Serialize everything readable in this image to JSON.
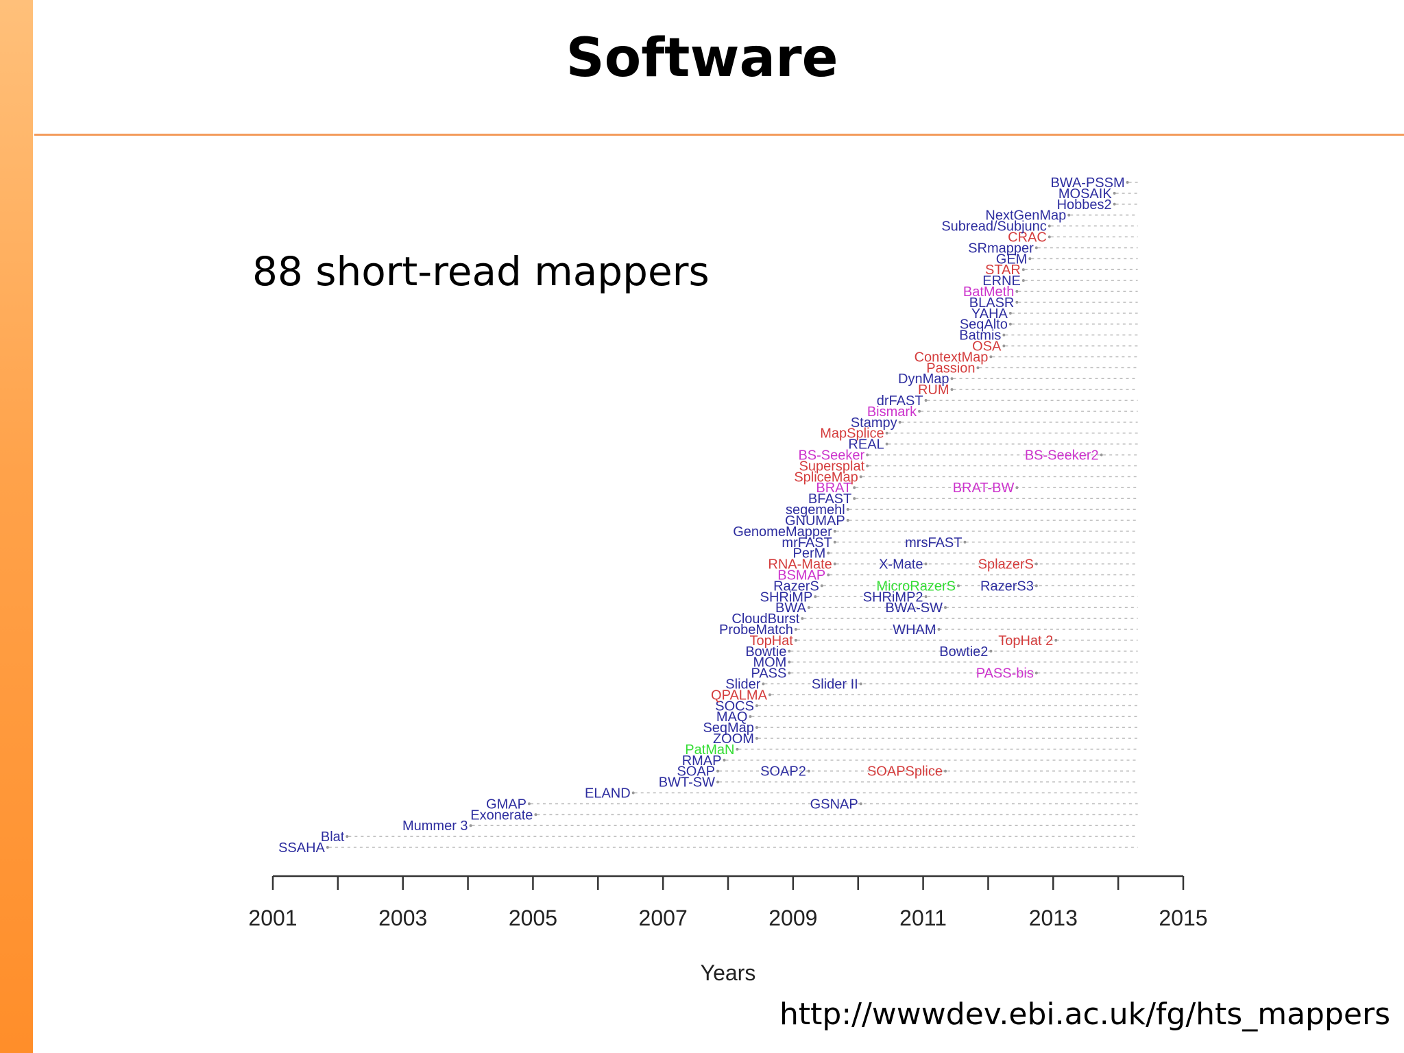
{
  "slide": {
    "title": "Software",
    "subtitle": "88 short-read mappers",
    "source": "http://wwwdev.ebi.ac.uk/fg/hts_mappers"
  },
  "colors": {
    "accent": "#ff9933",
    "dna": "#2d2d9f",
    "rna": "#d43c3c",
    "bisulfite": "#cc33cc",
    "other": "#33dd33",
    "axis": "#333333",
    "line": "#bbbbbb"
  },
  "chart_data": {
    "type": "timeline",
    "xlabel": "Years",
    "xlim": [
      2001,
      2015
    ],
    "xticks": [
      2001,
      2002,
      2003,
      2004,
      2005,
      2006,
      2007,
      2008,
      2009,
      2010,
      2011,
      2012,
      2013,
      2014,
      2015
    ],
    "xtick_labels": [
      "2001",
      "",
      "2003",
      "",
      "2005",
      "",
      "2007",
      "",
      "2009",
      "",
      "2011",
      "",
      "2013",
      "",
      "2015"
    ],
    "end_year": 2014.3,
    "tools": [
      {
        "name": "SSAHA",
        "year": 2001.8,
        "category": "dna"
      },
      {
        "name": "Blat",
        "year": 2002.1,
        "category": "dna"
      },
      {
        "name": "Mummer 3",
        "year": 2004.0,
        "category": "dna"
      },
      {
        "name": "Exonerate",
        "year": 2005.0,
        "category": "dna"
      },
      {
        "name": "GMAP",
        "year": 2004.9,
        "category": "dna"
      },
      {
        "name": "GSNAP",
        "year": 2010.0,
        "category": "dna"
      },
      {
        "name": "ELAND",
        "year": 2006.5,
        "category": "dna"
      },
      {
        "name": "BWT-SW",
        "year": 2007.8,
        "category": "dna"
      },
      {
        "name": "SOAP",
        "year": 2007.8,
        "category": "dna"
      },
      {
        "name": "SOAP2",
        "year": 2009.2,
        "category": "dna"
      },
      {
        "name": "SOAPSplice",
        "year": 2011.3,
        "category": "rna"
      },
      {
        "name": "RMAP",
        "year": 2007.9,
        "category": "dna"
      },
      {
        "name": "PatMaN",
        "year": 2008.1,
        "category": "other"
      },
      {
        "name": "ZOOM",
        "year": 2008.4,
        "category": "dna"
      },
      {
        "name": "SeqMap",
        "year": 2008.4,
        "category": "dna"
      },
      {
        "name": "MAQ",
        "year": 2008.3,
        "category": "dna"
      },
      {
        "name": "SOCS",
        "year": 2008.4,
        "category": "dna"
      },
      {
        "name": "QPALMA",
        "year": 2008.6,
        "category": "rna"
      },
      {
        "name": "Slider",
        "year": 2008.5,
        "category": "dna"
      },
      {
        "name": "Slider II",
        "year": 2010.0,
        "category": "dna"
      },
      {
        "name": "PASS",
        "year": 2008.9,
        "category": "dna"
      },
      {
        "name": "PASS-bis",
        "year": 2012.7,
        "category": "bisulfite"
      },
      {
        "name": "MOM",
        "year": 2008.9,
        "category": "dna"
      },
      {
        "name": "Bowtie",
        "year": 2008.9,
        "category": "dna"
      },
      {
        "name": "Bowtie2",
        "year": 2012.0,
        "category": "dna"
      },
      {
        "name": "TopHat",
        "year": 2009.0,
        "category": "rna"
      },
      {
        "name": "TopHat 2",
        "year": 2013.0,
        "category": "rna"
      },
      {
        "name": "ProbeMatch",
        "year": 2009.0,
        "category": "dna"
      },
      {
        "name": "CloudBurst",
        "year": 2009.1,
        "category": "dna"
      },
      {
        "name": "WHAM",
        "year": 2011.2,
        "category": "dna"
      },
      {
        "name": "BWA",
        "year": 2009.2,
        "category": "dna"
      },
      {
        "name": "BWA-SW",
        "year": 2011.3,
        "category": "dna"
      },
      {
        "name": "SHRiMP",
        "year": 2009.3,
        "category": "dna"
      },
      {
        "name": "SHRiMP2",
        "year": 2011.0,
        "category": "dna"
      },
      {
        "name": "RazerS",
        "year": 2009.4,
        "category": "dna"
      },
      {
        "name": "MicroRazerS",
        "year": 2011.5,
        "category": "other"
      },
      {
        "name": "RazerS3",
        "year": 2012.7,
        "category": "dna"
      },
      {
        "name": "BSMAP",
        "year": 2009.5,
        "category": "bisulfite"
      },
      {
        "name": "RNA-Mate",
        "year": 2009.6,
        "category": "rna"
      },
      {
        "name": "X-Mate",
        "year": 2011.0,
        "category": "dna"
      },
      {
        "name": "SplazerS",
        "year": 2012.7,
        "category": "rna"
      },
      {
        "name": "PerM",
        "year": 2009.5,
        "category": "dna"
      },
      {
        "name": "mrFAST",
        "year": 2009.6,
        "category": "dna"
      },
      {
        "name": "mrsFAST",
        "year": 2011.6,
        "category": "dna"
      },
      {
        "name": "GenomeMapper",
        "year": 2009.6,
        "category": "dna"
      },
      {
        "name": "GNUMAP",
        "year": 2009.8,
        "category": "dna"
      },
      {
        "name": "segemehl",
        "year": 2009.8,
        "category": "dna"
      },
      {
        "name": "BFAST",
        "year": 2009.9,
        "category": "dna"
      },
      {
        "name": "BRAT",
        "year": 2009.9,
        "category": "bisulfite"
      },
      {
        "name": "BRAT-BW",
        "year": 2012.4,
        "category": "bisulfite"
      },
      {
        "name": "SpliceMap",
        "year": 2010.0,
        "category": "rna"
      },
      {
        "name": "Supersplat",
        "year": 2010.1,
        "category": "rna"
      },
      {
        "name": "BS-Seeker",
        "year": 2010.1,
        "category": "bisulfite"
      },
      {
        "name": "BS-Seeker2",
        "year": 2013.7,
        "category": "bisulfite"
      },
      {
        "name": "REAL",
        "year": 2010.4,
        "category": "dna"
      },
      {
        "name": "MapSplice",
        "year": 2010.4,
        "category": "rna"
      },
      {
        "name": "Stampy",
        "year": 2010.6,
        "category": "dna"
      },
      {
        "name": "Bismark",
        "year": 2010.9,
        "category": "bisulfite"
      },
      {
        "name": "drFAST",
        "year": 2011.0,
        "category": "dna"
      },
      {
        "name": "RUM",
        "year": 2011.4,
        "category": "rna"
      },
      {
        "name": "DynMap",
        "year": 2011.4,
        "category": "dna"
      },
      {
        "name": "Passion",
        "year": 2011.8,
        "category": "rna"
      },
      {
        "name": "ContextMap",
        "year": 2012.0,
        "category": "rna"
      },
      {
        "name": "OSA",
        "year": 2012.2,
        "category": "rna"
      },
      {
        "name": "Batmis",
        "year": 2012.2,
        "category": "dna"
      },
      {
        "name": "SeqAlto",
        "year": 2012.3,
        "category": "dna"
      },
      {
        "name": "YAHA",
        "year": 2012.3,
        "category": "dna"
      },
      {
        "name": "BLASR",
        "year": 2012.4,
        "category": "dna"
      },
      {
        "name": "BatMeth",
        "year": 2012.4,
        "category": "bisulfite"
      },
      {
        "name": "ERNE",
        "year": 2012.5,
        "category": "dna"
      },
      {
        "name": "STAR",
        "year": 2012.5,
        "category": "rna"
      },
      {
        "name": "GEM",
        "year": 2012.6,
        "category": "dna"
      },
      {
        "name": "SRmapper",
        "year": 2012.7,
        "category": "dna"
      },
      {
        "name": "CRAC",
        "year": 2012.9,
        "category": "rna"
      },
      {
        "name": "Subread/Subjunc",
        "year": 2012.9,
        "category": "dna"
      },
      {
        "name": "NextGenMap",
        "year": 2013.2,
        "category": "dna"
      },
      {
        "name": "Hobbes2",
        "year": 2013.9,
        "category": "dna"
      },
      {
        "name": "MOSAIK",
        "year": 2013.9,
        "category": "dna"
      },
      {
        "name": "BWA-PSSM",
        "year": 2014.1,
        "category": "dna"
      }
    ],
    "rows": [
      [
        "SSAHA"
      ],
      [
        "Blat"
      ],
      [
        "Mummer 3"
      ],
      [
        "Exonerate"
      ],
      [
        "GMAP",
        "GSNAP"
      ],
      [
        "ELAND"
      ],
      [
        "BWT-SW"
      ],
      [
        "SOAP",
        "SOAP2",
        "SOAPSplice"
      ],
      [
        "RMAP"
      ],
      [
        "PatMaN"
      ],
      [
        "ZOOM"
      ],
      [
        "SeqMap"
      ],
      [
        "MAQ"
      ],
      [
        "SOCS"
      ],
      [
        "QPALMA"
      ],
      [
        "Slider",
        "Slider II"
      ],
      [
        "PASS",
        "PASS-bis"
      ],
      [
        "MOM"
      ],
      [
        "Bowtie",
        "Bowtie2"
      ],
      [
        "TopHat",
        "TopHat 2"
      ],
      [
        "ProbeMatch",
        "WHAM"
      ],
      [
        "CloudBurst"
      ],
      [
        "BWA",
        "BWA-SW"
      ],
      [
        "SHRiMP",
        "SHRiMP2"
      ],
      [
        "RazerS",
        "MicroRazerS",
        "RazerS3"
      ],
      [
        "BSMAP"
      ],
      [
        "RNA-Mate",
        "X-Mate",
        "SplazerS"
      ],
      [
        "PerM"
      ],
      [
        "mrFAST",
        "mrsFAST"
      ],
      [
        "GenomeMapper"
      ],
      [
        "GNUMAP"
      ],
      [
        "segemehl"
      ],
      [
        "BFAST"
      ],
      [
        "BRAT",
        "BRAT-BW"
      ],
      [
        "SpliceMap"
      ],
      [
        "Supersplat"
      ],
      [
        "BS-Seeker",
        "BS-Seeker2"
      ],
      [
        "REAL"
      ],
      [
        "MapSplice"
      ],
      [
        "Stampy"
      ],
      [
        "Bismark"
      ],
      [
        "drFAST"
      ],
      [
        "RUM"
      ],
      [
        "DynMap"
      ],
      [
        "Passion"
      ],
      [
        "ContextMap"
      ],
      [
        "OSA"
      ],
      [
        "Batmis"
      ],
      [
        "SeqAlto"
      ],
      [
        "YAHA"
      ],
      [
        "BLASR"
      ],
      [
        "BatMeth"
      ],
      [
        "ERNE"
      ],
      [
        "STAR"
      ],
      [
        "GEM"
      ],
      [
        "SRmapper"
      ],
      [
        "CRAC"
      ],
      [
        "Subread/Subjunc"
      ],
      [
        "NextGenMap"
      ],
      [
        "Hobbes2"
      ],
      [
        "MOSAIK"
      ],
      [
        "BWA-PSSM"
      ]
    ]
  }
}
